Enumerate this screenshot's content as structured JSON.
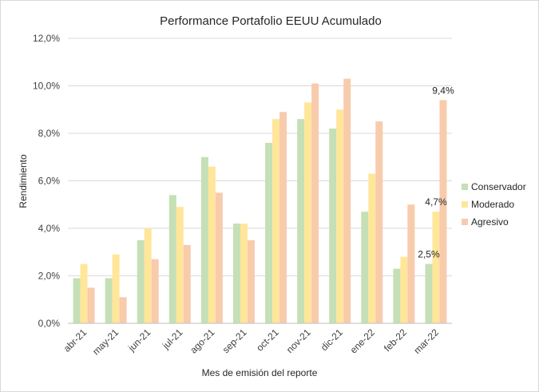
{
  "chart_data": {
    "type": "bar",
    "title": "Performance Portafolio EEUU Acumulado",
    "xlabel": "Mes de emisión del reporte",
    "ylabel": "Rendimiento",
    "categories": [
      "abr-21",
      "may-21",
      "jun-21",
      "jul-21",
      "ago-21",
      "sep-21",
      "oct-21",
      "nov-21",
      "dic-21",
      "ene-22",
      "feb-22",
      "mar-22"
    ],
    "series": [
      {
        "name": "Conservador",
        "color": "#c5e0b4",
        "values": [
          1.9,
          1.9,
          3.5,
          5.4,
          7.0,
          4.2,
          7.6,
          8.6,
          8.2,
          4.7,
          2.3,
          2.5
        ]
      },
      {
        "name": "Moderado",
        "color": "#ffe699",
        "values": [
          2.5,
          2.9,
          4.0,
          4.9,
          6.6,
          4.2,
          8.6,
          9.3,
          9.0,
          6.3,
          2.8,
          4.7
        ]
      },
      {
        "name": "Agresivo",
        "color": "#f8cbad",
        "values": [
          1.5,
          1.1,
          2.7,
          3.3,
          5.5,
          3.5,
          8.9,
          10.1,
          10.3,
          8.5,
          5.0,
          9.4
        ]
      }
    ],
    "ylim": [
      0,
      12
    ],
    "yticks": [
      "0,0%",
      "2,0%",
      "4,0%",
      "6,0%",
      "8,0%",
      "10,0%",
      "12,0%"
    ],
    "grid": true,
    "legend_position": "right",
    "data_labels": [
      {
        "series": 0,
        "index": 11,
        "text": "2,5%"
      },
      {
        "series": 1,
        "index": 11,
        "text": "4,7%"
      },
      {
        "series": 2,
        "index": 11,
        "text": "9,4%"
      }
    ]
  }
}
